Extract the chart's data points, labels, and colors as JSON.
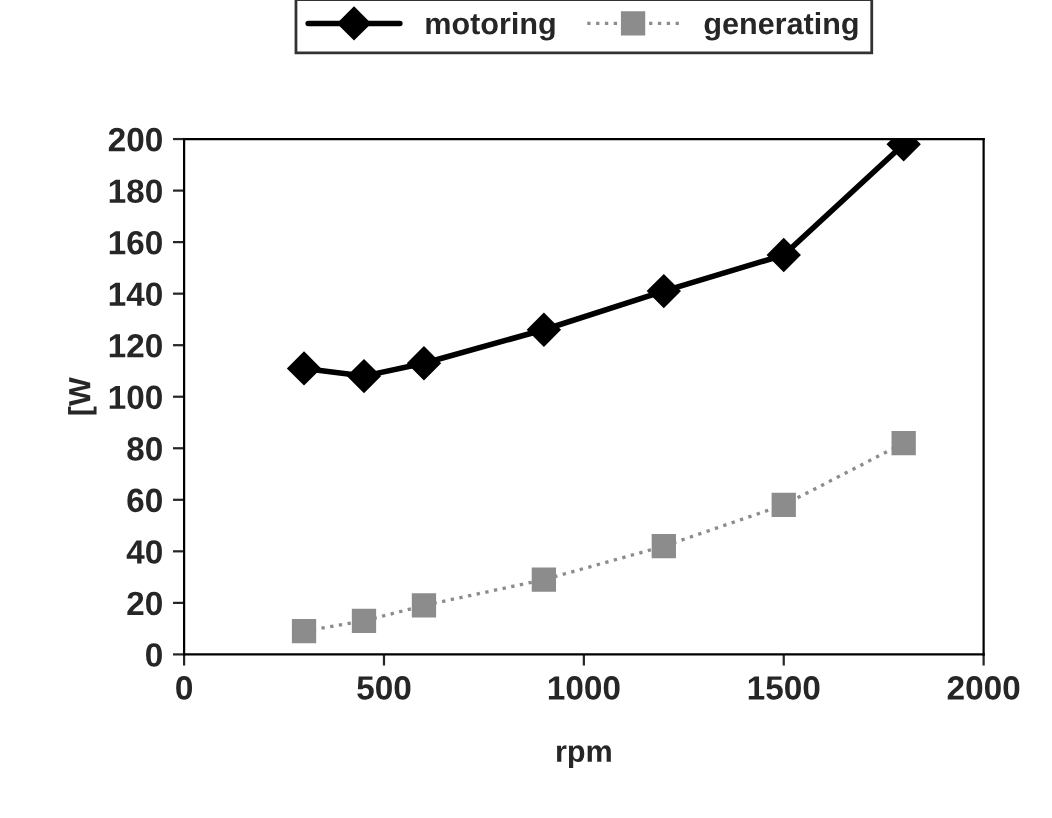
{
  "chart_data": {
    "type": "line",
    "xlabel": "rpm",
    "ylabel": "[W",
    "x": [
      300,
      450,
      600,
      900,
      1200,
      1500,
      1800
    ],
    "series": [
      {
        "name": "motoring",
        "color": "#000000",
        "values": [
          111,
          108,
          113,
          126,
          141,
          155,
          198
        ],
        "marker": "diamond",
        "line_style": "solid"
      },
      {
        "name": "generating",
        "color": "#8c8c8c",
        "values": [
          9,
          13,
          19,
          29,
          42,
          58,
          82
        ],
        "marker": "square",
        "line_style": "dotted"
      }
    ],
    "xlim": [
      0,
      2000
    ],
    "xticks": [
      0,
      500,
      1000,
      1500,
      2000
    ],
    "ylim": [
      0,
      200
    ],
    "yticks": [
      0,
      20,
      40,
      60,
      80,
      100,
      120,
      140,
      160,
      180,
      200
    ],
    "grid": false,
    "legend": "top"
  }
}
